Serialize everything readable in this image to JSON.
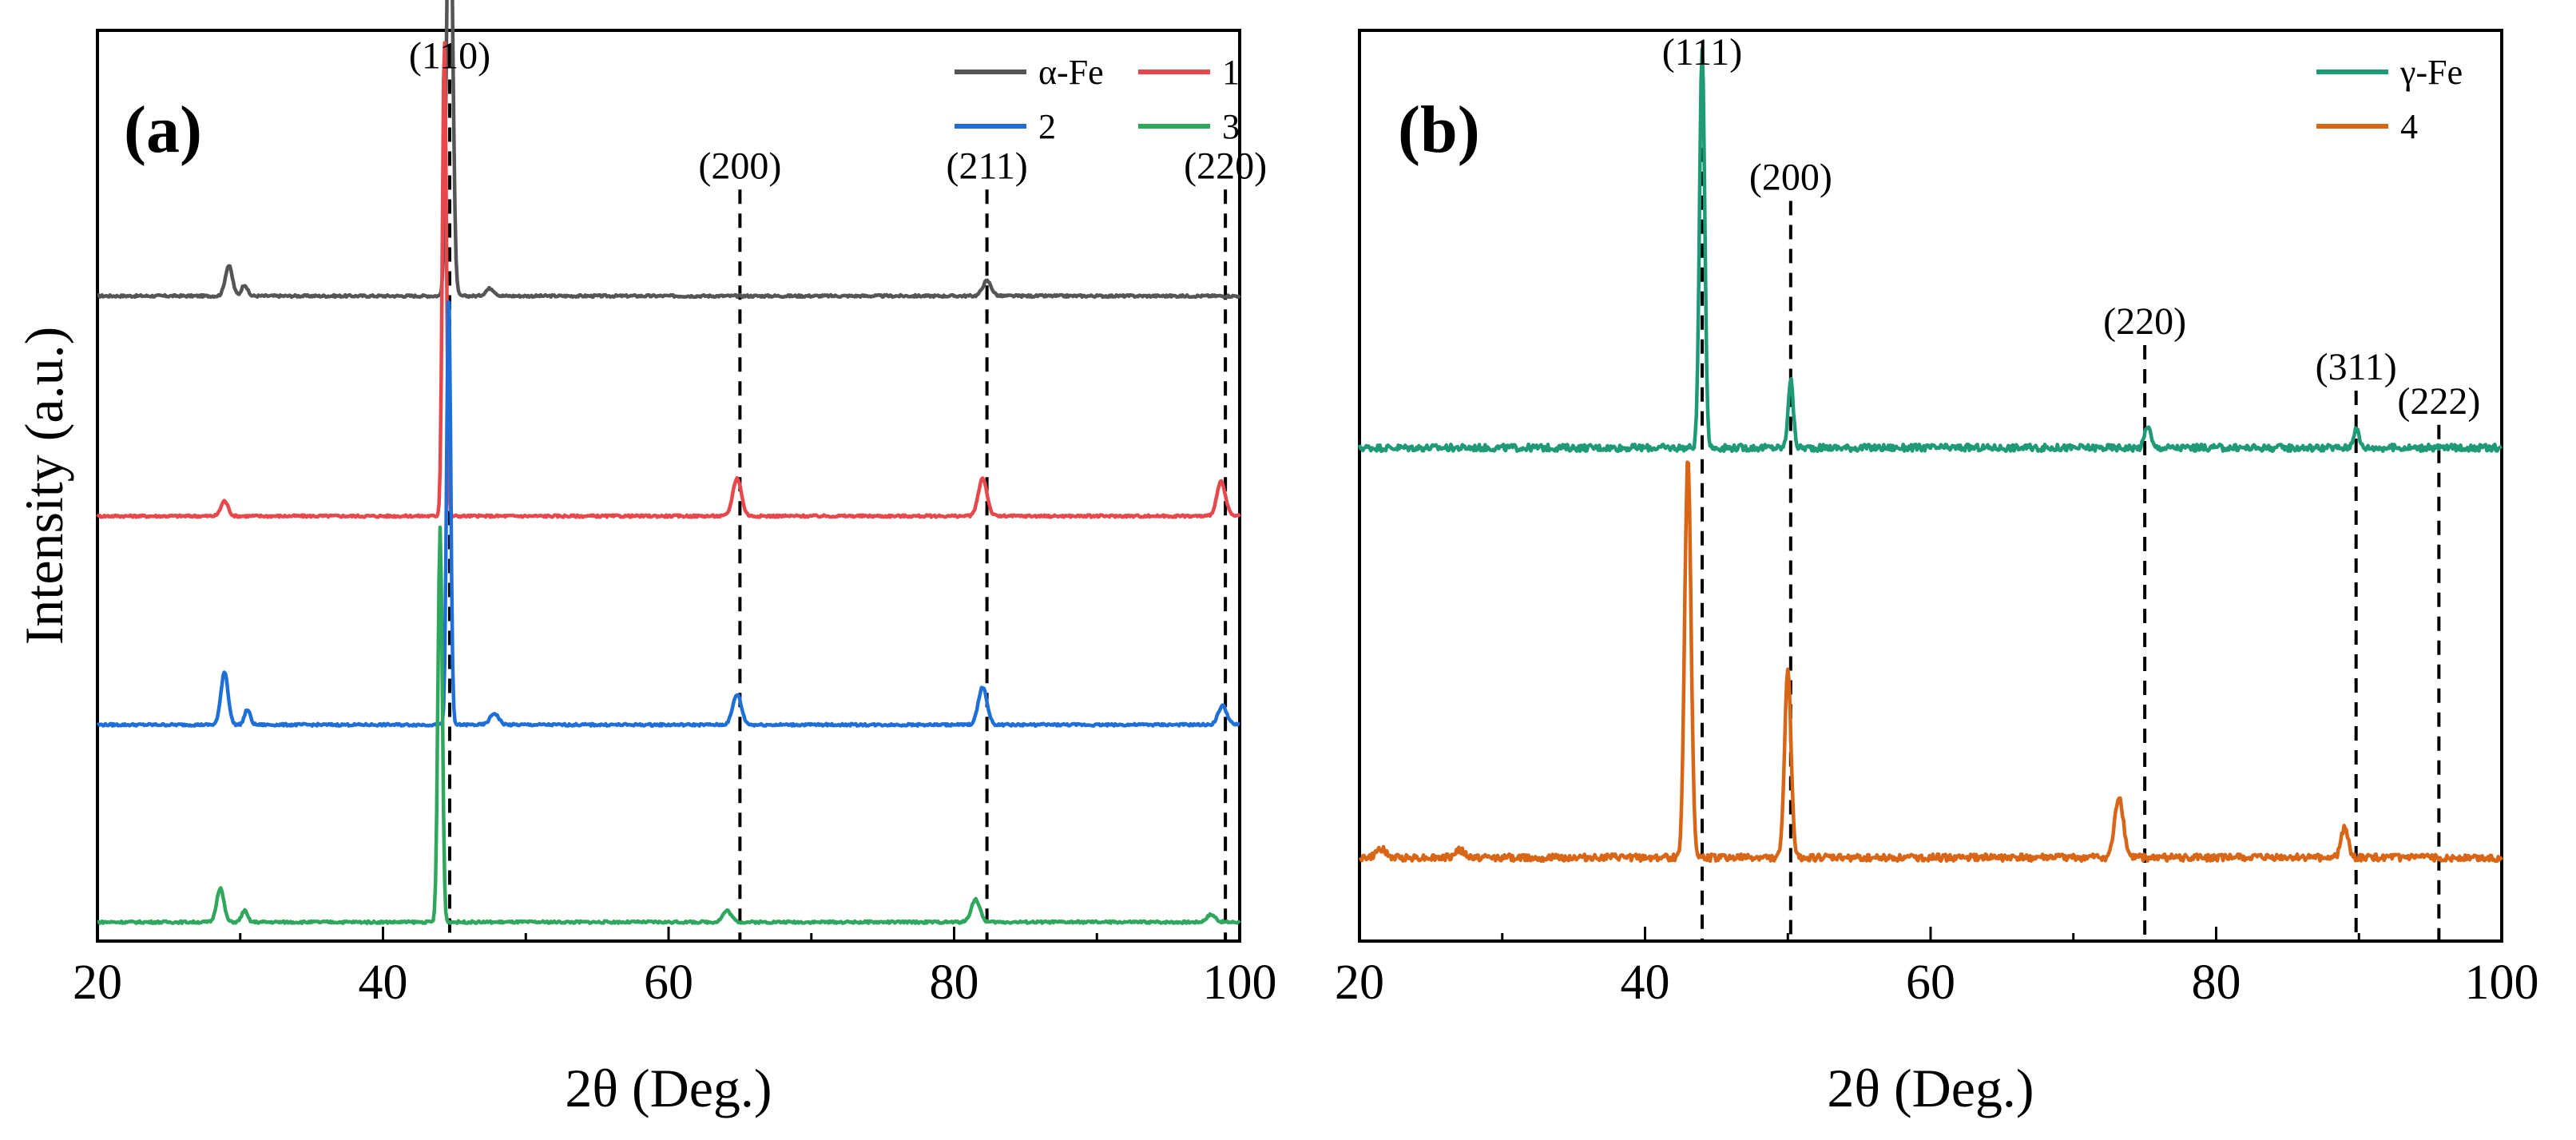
{
  "figure": {
    "ylabel": "Intensity (a.u.)"
  },
  "chart_data": [
    {
      "type": "line",
      "panel": "(a)",
      "xlabel": "2θ (Deg.)",
      "ylabel": "Intensity (a.u.)",
      "xlim": [
        20,
        100
      ],
      "xticks": [
        20,
        40,
        60,
        80,
        100
      ],
      "ylim": [
        0,
        12
      ],
      "grid": false,
      "legend_position": "top-right",
      "reference_lines": [
        {
          "x": 44.67,
          "label": "(110)"
        },
        {
          "x": 65.0,
          "label": "(200)"
        },
        {
          "x": 82.3,
          "label": "(211)"
        },
        {
          "x": 99.0,
          "label": "(220)"
        }
      ],
      "series": [
        {
          "name": "α-Fe",
          "color": "#555555",
          "offset": 8.5,
          "peaks": [
            [
              29.2,
              0.4,
              0.25
            ],
            [
              30.3,
              0.15,
              0.2
            ],
            [
              44.67,
              6.2,
              0.2
            ],
            [
              47.5,
              0.1,
              0.3
            ],
            [
              82.3,
              0.2,
              0.3
            ]
          ]
        },
        {
          "name": "1",
          "color": "#e8474b",
          "offset": 5.6,
          "peaks": [
            [
              28.9,
              0.2,
              0.25
            ],
            [
              44.3,
              6.3,
              0.14
            ],
            [
              64.8,
              0.5,
              0.3
            ],
            [
              82.0,
              0.5,
              0.3
            ],
            [
              98.7,
              0.45,
              0.3
            ]
          ]
        },
        {
          "name": "2",
          "color": "#1f6fd9",
          "offset": 2.85,
          "peaks": [
            [
              28.9,
              0.7,
              0.25
            ],
            [
              30.5,
              0.2,
              0.2
            ],
            [
              44.6,
              5.8,
              0.14
            ],
            [
              47.8,
              0.15,
              0.3
            ],
            [
              64.8,
              0.4,
              0.3
            ],
            [
              82.0,
              0.5,
              0.3
            ],
            [
              98.8,
              0.25,
              0.3
            ]
          ]
        },
        {
          "name": "3",
          "color": "#2fa85e",
          "offset": 0.25,
          "peaks": [
            [
              28.6,
              0.45,
              0.25
            ],
            [
              30.3,
              0.15,
              0.2
            ],
            [
              44.0,
              5.2,
              0.15
            ],
            [
              64.1,
              0.15,
              0.3
            ],
            [
              81.5,
              0.3,
              0.3
            ],
            [
              98.0,
              0.1,
              0.3
            ]
          ]
        }
      ]
    },
    {
      "type": "line",
      "panel": "(b)",
      "xlabel": "2θ (Deg.)",
      "ylim": [
        0,
        12
      ],
      "xlim": [
        20,
        100
      ],
      "xticks": [
        20,
        40,
        60,
        80,
        100
      ],
      "grid": false,
      "legend_position": "top-right",
      "reference_lines": [
        {
          "x": 44.0,
          "label": "(111)"
        },
        {
          "x": 50.2,
          "label": "(200)"
        },
        {
          "x": 75.0,
          "label": "(220)"
        },
        {
          "x": 89.8,
          "label": "(311)"
        },
        {
          "x": 95.6,
          "label": "(222)"
        }
      ],
      "series": [
        {
          "name": "γ-Fe",
          "color": "#1f9a76",
          "offset": 6.5,
          "peaks": [
            [
              44.0,
              5.3,
              0.18
            ],
            [
              50.2,
              0.9,
              0.18
            ],
            [
              75.2,
              0.3,
              0.2
            ],
            [
              89.8,
              0.25,
              0.2
            ]
          ]
        },
        {
          "name": "4",
          "color": "#d96516",
          "offset": 1.1,
          "peaks": [
            [
              43.0,
              5.3,
              0.22
            ],
            [
              50.0,
              2.5,
              0.22
            ],
            [
              73.2,
              0.8,
              0.3
            ],
            [
              89.0,
              0.4,
              0.25
            ],
            [
              21.5,
              0.12,
              0.3
            ],
            [
              27.0,
              0.1,
              0.3
            ]
          ]
        }
      ]
    }
  ]
}
